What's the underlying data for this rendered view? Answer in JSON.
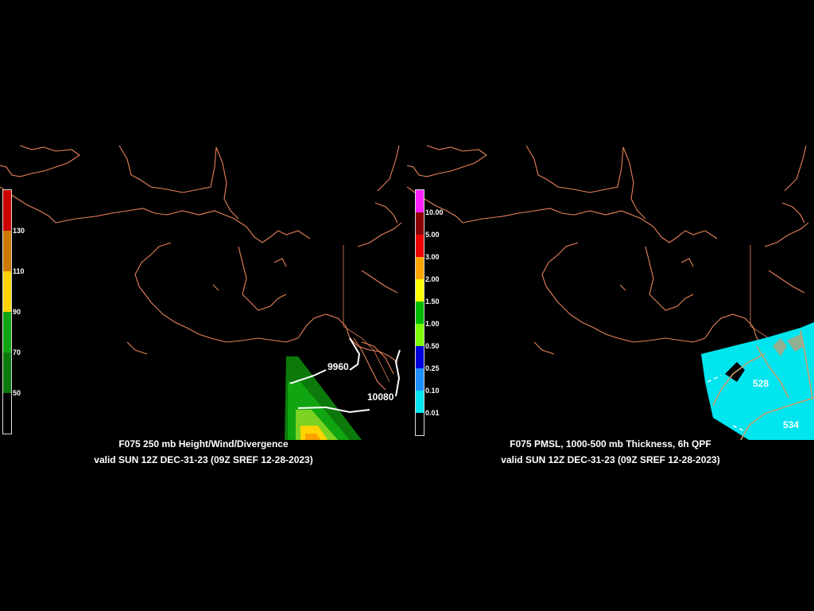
{
  "panels": [
    {
      "title": "F075 250 mb Height/Wind/Divergence",
      "valid": "valid SUN 12Z DEC-31-23 (09Z SREF 12-28-2023)",
      "contours": [
        "9960",
        "10080"
      ],
      "colorbar": [
        {
          "label": "",
          "color": "#cc0000"
        },
        {
          "label": "130",
          "color": "#cc7a00"
        },
        {
          "label": "110",
          "color": "#ffd400"
        },
        {
          "label": "90",
          "color": "#11a611"
        },
        {
          "label": "70",
          "color": "#0b7a0b"
        },
        {
          "label": "50",
          "color": "#000000"
        }
      ]
    },
    {
      "title": "F075 PMSL, 1000-500 mb Thickness, 6h QPF",
      "valid": "valid SUN 12Z DEC-31-23 (09Z SREF 12-28-2023)",
      "contours": [
        "528",
        "534"
      ],
      "colorbar": [
        {
          "label": "",
          "color": "#ff1fff"
        },
        {
          "label": "10.00",
          "color": "#8b0000"
        },
        {
          "label": "5.00",
          "color": "#ee0000"
        },
        {
          "label": "3.00",
          "color": "#ffa500"
        },
        {
          "label": "2.00",
          "color": "#ffff00"
        },
        {
          "label": "1.50",
          "color": "#00bb00"
        },
        {
          "label": "1.00",
          "color": "#7cfc00"
        },
        {
          "label": "0.50",
          "color": "#0000dd"
        },
        {
          "label": "0.25",
          "color": "#1e90ff"
        },
        {
          "label": "0.10",
          "color": "#00e5ee"
        },
        {
          "label": "0.01",
          "color": "#000000"
        }
      ]
    }
  ]
}
